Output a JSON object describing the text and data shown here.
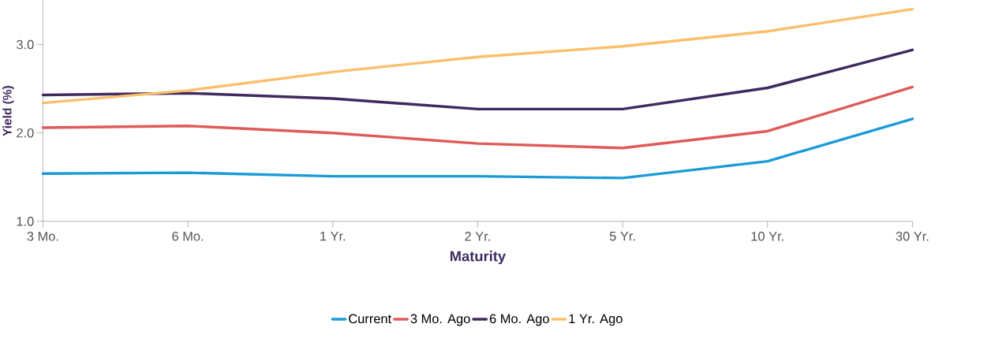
{
  "chart_data": {
    "type": "line",
    "xlabel": "Maturity",
    "ylabel": "Yield (%)",
    "categories": [
      "3 Mo.",
      "6 Mo.",
      "1 Yr.",
      "2 Yr.",
      "5 Yr.",
      "10 Yr.",
      "30 Yr."
    ],
    "series": [
      {
        "name": "Current",
        "color": "#1a9bd7",
        "values": [
          1.54,
          1.55,
          1.51,
          1.51,
          1.49,
          1.68,
          2.16
        ]
      },
      {
        "name": "3 Mo. Ago",
        "color": "#e05a5a",
        "values": [
          2.06,
          2.08,
          2.0,
          1.88,
          1.83,
          2.02,
          2.52
        ]
      },
      {
        "name": "6 Mo. Ago",
        "color": "#3d2a5e",
        "values": [
          2.43,
          2.45,
          2.39,
          2.27,
          2.27,
          2.51,
          2.94
        ]
      },
      {
        "name": "1 Yr. Ago",
        "color": "#fbbf6b",
        "values": [
          2.34,
          2.48,
          2.69,
          2.86,
          2.98,
          3.15,
          3.4
        ]
      }
    ],
    "ylim": [
      1.0,
      3.5
    ],
    "yticks": [
      {
        "value": 1,
        "label": "1.0"
      },
      {
        "value": 2,
        "label": "2.0"
      },
      {
        "value": 3,
        "label": "3.0"
      }
    ],
    "grid": false,
    "legend": "bottom",
    "marker": "none",
    "line_style": "solid"
  }
}
